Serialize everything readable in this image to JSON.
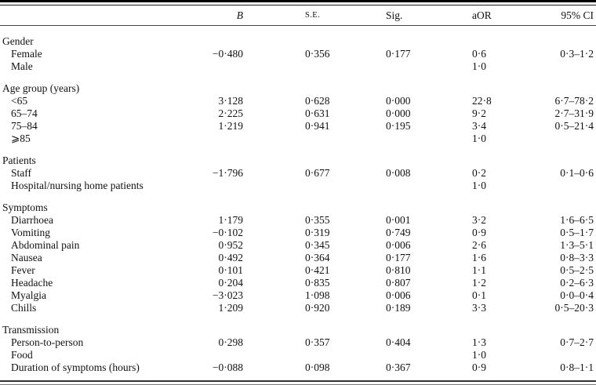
{
  "header": {
    "label": "",
    "b": "B",
    "se": "S.E.",
    "sig": "Sig.",
    "aor": "aOR",
    "ci": "95% CI"
  },
  "sections": [
    {
      "title": "Gender",
      "rows": [
        {
          "label": "Female",
          "b": "−0·480",
          "se": "0·356",
          "sig": "0·177",
          "aor": "0·6",
          "ci": "0·3–1·2"
        },
        {
          "label": "Male",
          "b": "",
          "se": "",
          "sig": "",
          "aor": "1·0",
          "ci": ""
        }
      ]
    },
    {
      "title": "Age group (years)",
      "rows": [
        {
          "label": "<65",
          "b": "3·128",
          "se": "0·628",
          "sig": "0·000",
          "aor": "22·8",
          "ci": "6·7–78·2"
        },
        {
          "label": "65–74",
          "b": "2·225",
          "se": "0·631",
          "sig": "0·000",
          "aor": "9·2",
          "ci": "2·7–31·9"
        },
        {
          "label": "75–84",
          "b": "1·219",
          "se": "0·941",
          "sig": "0·195",
          "aor": "3·4",
          "ci": "0·5–21·4"
        },
        {
          "label": "⩾85",
          "b": "",
          "se": "",
          "sig": "",
          "aor": "1·0",
          "ci": ""
        }
      ]
    },
    {
      "title": "Patients",
      "rows": [
        {
          "label": "Staff",
          "b": "−1·796",
          "se": "0·677",
          "sig": "0·008",
          "aor": "0·2",
          "ci": "0·1–0·6"
        },
        {
          "label": "Hospital/nursing home patients",
          "b": "",
          "se": "",
          "sig": "",
          "aor": "1·0",
          "ci": ""
        }
      ]
    },
    {
      "title": "Symptoms",
      "rows": [
        {
          "label": "Diarrhoea",
          "b": "1·179",
          "se": "0·355",
          "sig": "0·001",
          "aor": "3·2",
          "ci": "1·6–6·5"
        },
        {
          "label": "Vomiting",
          "b": "−0·102",
          "se": "0·319",
          "sig": "0·749",
          "aor": "0·9",
          "ci": "0·5–1·7"
        },
        {
          "label": "Abdominal pain",
          "b": "0·952",
          "se": "0·345",
          "sig": "0·006",
          "aor": "2·6",
          "ci": "1·3–5·1"
        },
        {
          "label": "Nausea",
          "b": "0·492",
          "se": "0·364",
          "sig": "0·177",
          "aor": "1·6",
          "ci": "0·8–3·3"
        },
        {
          "label": "Fever",
          "b": "0·101",
          "se": "0·421",
          "sig": "0·810",
          "aor": "1·1",
          "ci": "0·5–2·5"
        },
        {
          "label": "Headache",
          "b": "0·204",
          "se": "0·835",
          "sig": "0·807",
          "aor": "1·2",
          "ci": "0·2–6·3"
        },
        {
          "label": "Myalgia",
          "b": "−3·023",
          "se": "1·098",
          "sig": "0·006",
          "aor": "0·1",
          "ci": "0·0–0·4"
        },
        {
          "label": "Chills",
          "b": "1·209",
          "se": "0·920",
          "sig": "0·189",
          "aor": "3·3",
          "ci": "0·5–20·3"
        }
      ]
    },
    {
      "title": "Transmission",
      "rows": [
        {
          "label": "Person-to-person",
          "b": "0·298",
          "se": "0·357",
          "sig": "0·404",
          "aor": "1·3",
          "ci": "0·7–2·7"
        },
        {
          "label": "Food",
          "b": "",
          "se": "",
          "sig": "",
          "aor": "1·0",
          "ci": ""
        },
        {
          "label": "Duration of symptoms (hours)",
          "b": "−0·088",
          "se": "0·098",
          "sig": "0·367",
          "aor": "0·9",
          "ci": "0·8–1·1"
        }
      ]
    }
  ]
}
